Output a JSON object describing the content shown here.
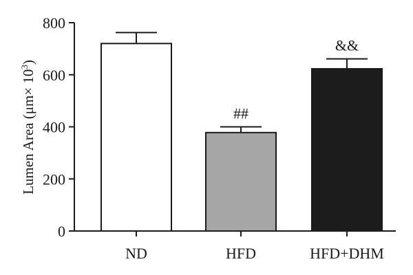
{
  "chart_data": {
    "type": "bar",
    "categories": [
      "ND",
      "HFD",
      "HFD+DHM"
    ],
    "values": [
      720,
      378,
      623
    ],
    "errors": [
      42,
      22,
      38
    ],
    "annotations": [
      "",
      "##",
      "&&"
    ],
    "colors": [
      "#ffffff",
      "#a6a6a6",
      "#1c1c1c"
    ],
    "edge_color": "#1a1a1a",
    "ylabel": "Lumen Area (μm× 10",
    "ylabel_superscript": "3",
    "ylabel_suffix": ")",
    "ylim": [
      0,
      800
    ],
    "yticks": [
      0,
      200,
      400,
      600,
      800
    ],
    "grid": false,
    "legend": "none"
  }
}
